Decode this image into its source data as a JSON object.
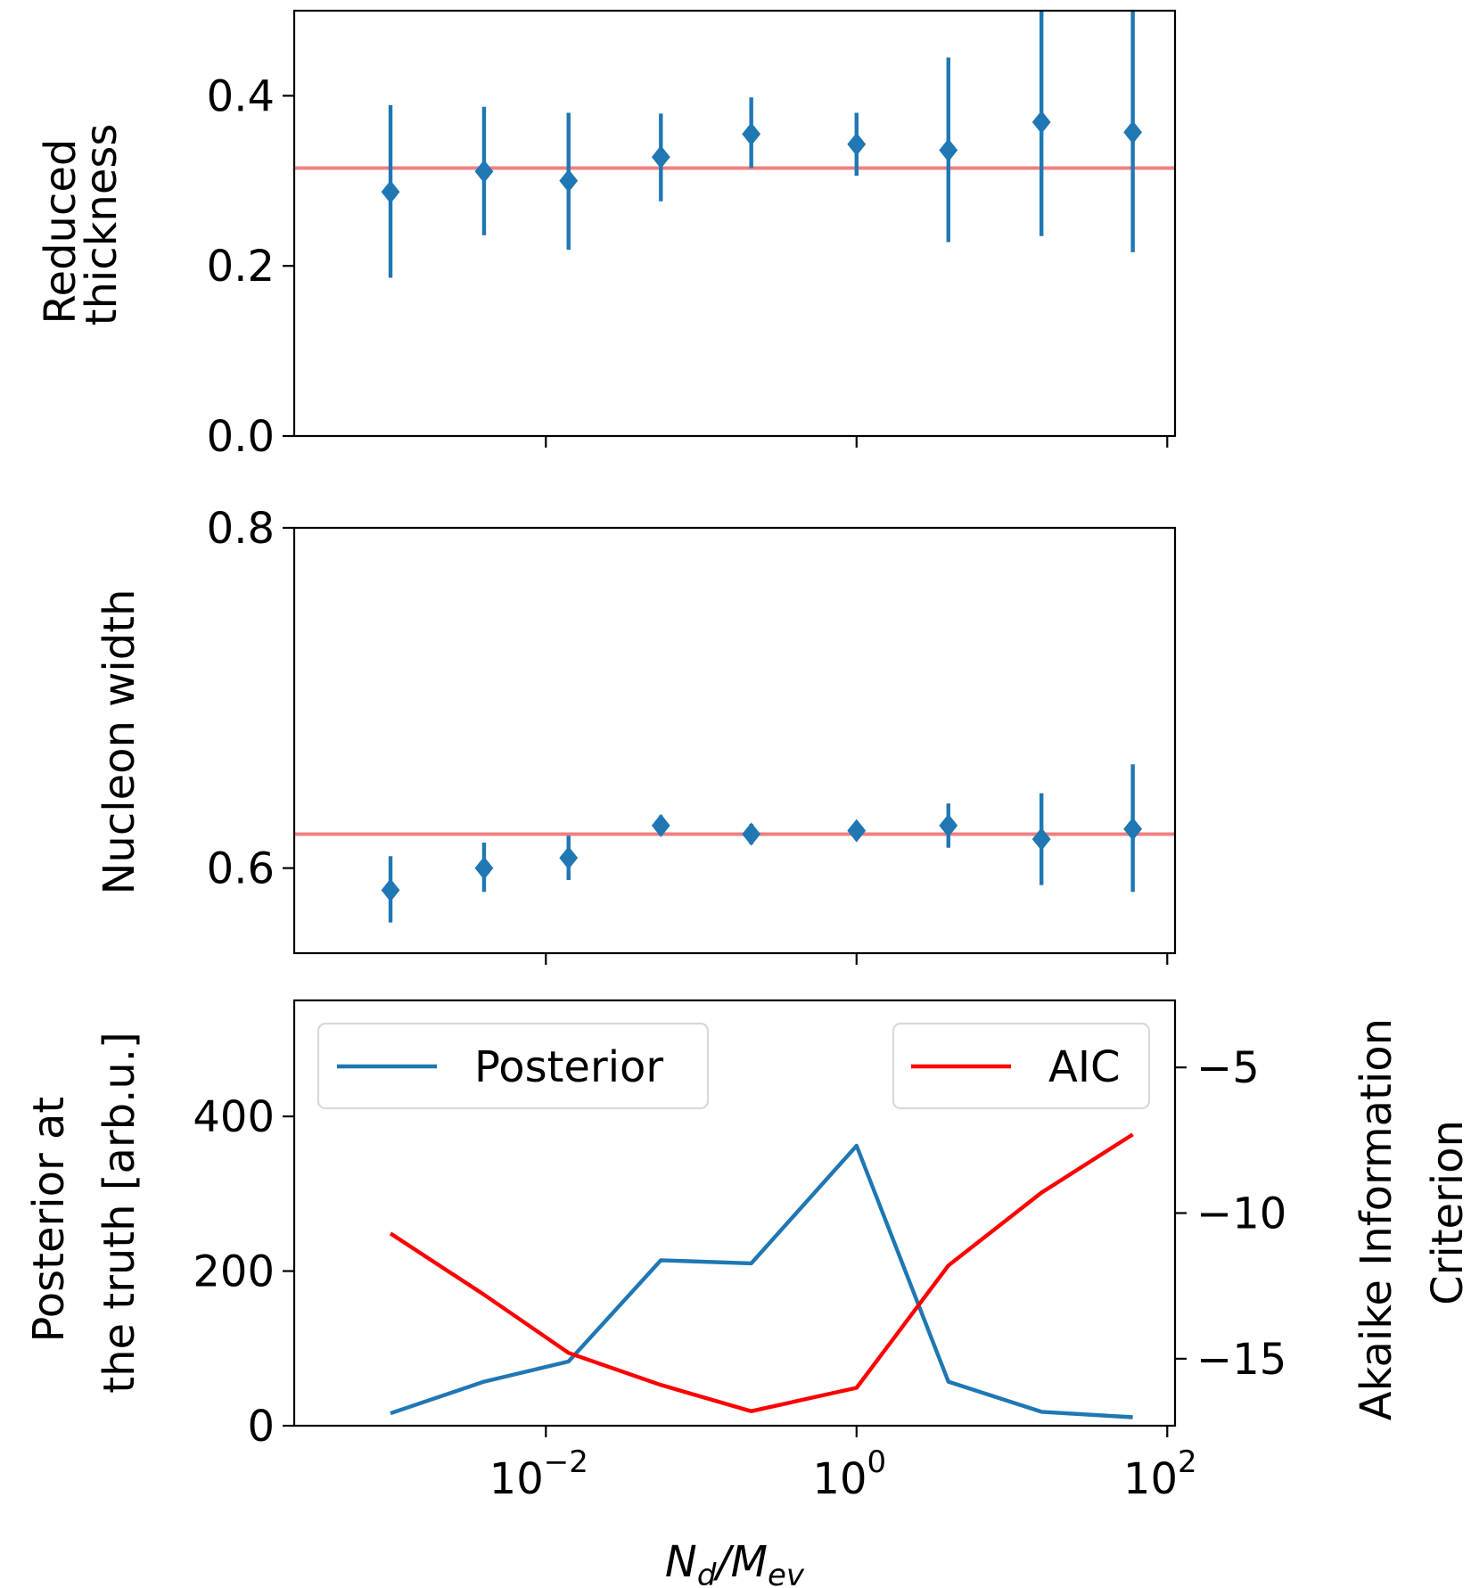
{
  "chart_data": [
    {
      "type": "scatter",
      "panel": "top",
      "ylabel_lines": [
        "Reduced",
        "thickness"
      ],
      "xscale": "log",
      "xlim_log10": [
        -3.62,
        2.05
      ],
      "ylim": [
        0.0,
        0.5
      ],
      "yticks": [
        0.0,
        0.2,
        0.4
      ],
      "ytick_labels": [
        "0.0",
        "0.2",
        "0.4"
      ],
      "xticks_log10": [
        -2,
        0,
        2
      ],
      "xtick_labels_shown": false,
      "reference_value": 0.315,
      "reference_color": "#f08080",
      "series_color": "#1f77b4",
      "points": [
        {
          "x": 0.001,
          "y": 0.287,
          "lo": 0.186,
          "hi": 0.389
        },
        {
          "x": 0.004,
          "y": 0.311,
          "lo": 0.236,
          "hi": 0.387
        },
        {
          "x": 0.014,
          "y": 0.3,
          "lo": 0.219,
          "hi": 0.38
        },
        {
          "x": 0.055,
          "y": 0.328,
          "lo": 0.276,
          "hi": 0.379
        },
        {
          "x": 0.21,
          "y": 0.355,
          "lo": 0.315,
          "hi": 0.398
        },
        {
          "x": 1.0,
          "y": 0.343,
          "lo": 0.306,
          "hi": 0.38
        },
        {
          "x": 3.9,
          "y": 0.336,
          "lo": 0.228,
          "hi": 0.445
        },
        {
          "x": 15.5,
          "y": 0.369,
          "lo": 0.235,
          "hi": 0.52
        },
        {
          "x": 60.0,
          "y": 0.357,
          "lo": 0.216,
          "hi": 0.52
        }
      ]
    },
    {
      "type": "scatter",
      "panel": "middle",
      "ylabel_lines": [
        "Nucleon width"
      ],
      "xscale": "log",
      "xlim_log10": [
        -3.62,
        2.05
      ],
      "ylim": [
        0.55,
        0.8
      ],
      "yticks": [
        0.6,
        0.8
      ],
      "ytick_labels": [
        "0.6",
        "0.8"
      ],
      "xticks_log10": [
        -2,
        0,
        2
      ],
      "xtick_labels_shown": false,
      "reference_value": 0.62,
      "reference_color": "#f08080",
      "series_color": "#1f77b4",
      "points": [
        {
          "x": 0.001,
          "y": 0.587,
          "lo": 0.568,
          "hi": 0.607
        },
        {
          "x": 0.004,
          "y": 0.6,
          "lo": 0.586,
          "hi": 0.615
        },
        {
          "x": 0.014,
          "y": 0.606,
          "lo": 0.593,
          "hi": 0.619
        },
        {
          "x": 0.055,
          "y": 0.625,
          "lo": 0.619,
          "hi": 0.631
        },
        {
          "x": 0.21,
          "y": 0.62,
          "lo": 0.614,
          "hi": 0.626
        },
        {
          "x": 1.0,
          "y": 0.622,
          "lo": 0.619,
          "hi": 0.625
        },
        {
          "x": 3.9,
          "y": 0.625,
          "lo": 0.612,
          "hi": 0.638
        },
        {
          "x": 15.5,
          "y": 0.617,
          "lo": 0.59,
          "hi": 0.644
        },
        {
          "x": 60.0,
          "y": 0.623,
          "lo": 0.586,
          "hi": 0.661
        }
      ]
    },
    {
      "type": "line",
      "panel": "bottom",
      "xlabel": "N_d/M_ev",
      "xlabel_parts": {
        "main1": "N",
        "sub1": "d",
        "slash": "/",
        "main2": "M",
        "sub2": "ev"
      },
      "ylabel_lines": [
        "Posterior at",
        "the truth [arb.u.]"
      ],
      "ylabel_right_lines": [
        "Akaike Information",
        "Criterion"
      ],
      "xscale": "log",
      "xlim_log10": [
        -3.62,
        2.05
      ],
      "ylim": [
        0,
        550
      ],
      "yticks": [
        0,
        200,
        400
      ],
      "ytick_labels": [
        "0",
        "200",
        "400"
      ],
      "ylim_right": [
        -17.3,
        -2.7
      ],
      "yticks_right": [
        -15,
        -10,
        -5
      ],
      "ytick_labels_right": [
        "−15",
        "−10",
        "−5"
      ],
      "xticks_log10": [
        -2,
        0,
        2
      ],
      "xtick_base": "10",
      "xtick_exponents": [
        "−2",
        "0",
        "2"
      ],
      "x": [
        0.001,
        0.004,
        0.014,
        0.055,
        0.21,
        1.0,
        3.9,
        15.5,
        60.0
      ],
      "series": [
        {
          "name": "Posterior",
          "color": "#1f77b4",
          "axis": "left",
          "values": [
            16,
            57,
            83,
            214,
            210,
            362,
            57,
            18,
            11
          ]
        },
        {
          "name": "AIC",
          "color": "#ff0000",
          "axis": "right",
          "values": [
            -10.7,
            -12.8,
            -14.8,
            -15.9,
            -16.8,
            -16.0,
            -11.8,
            -9.3,
            -7.3
          ]
        }
      ],
      "legends": [
        {
          "label": "Posterior",
          "series": 0,
          "placement": "upper-left"
        },
        {
          "label": "AIC",
          "series": 1,
          "placement": "upper-right"
        }
      ]
    }
  ]
}
